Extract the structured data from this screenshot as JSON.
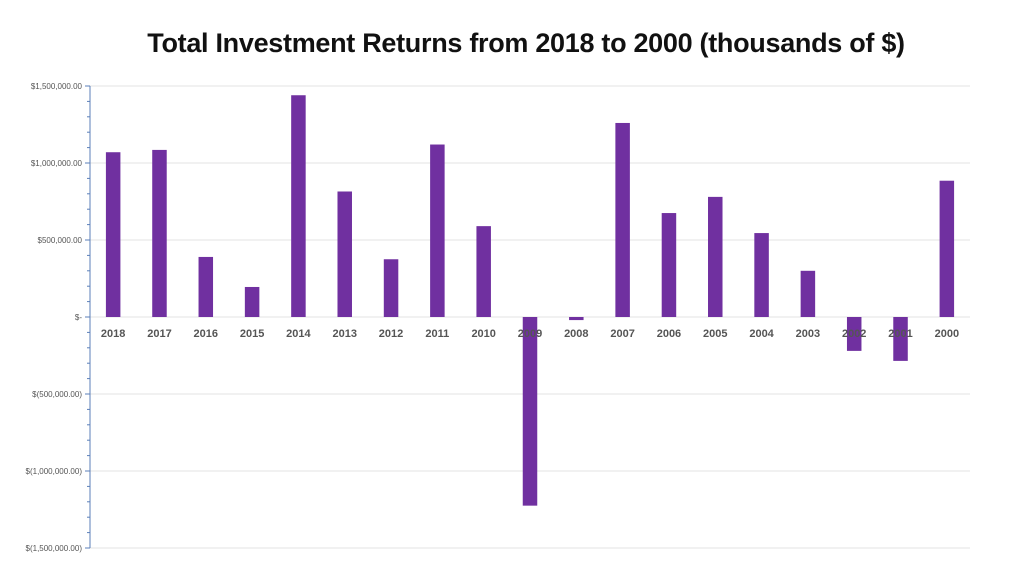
{
  "chart_data": {
    "type": "bar",
    "title": "Total Investment Returns from 2018 to 2000 (thousands of $)",
    "xlabel": "",
    "ylabel": "",
    "categories": [
      "2018",
      "2017",
      "2016",
      "2015",
      "2014",
      "2013",
      "2012",
      "2011",
      "2010",
      "2009",
      "2008",
      "2007",
      "2006",
      "2005",
      "2004",
      "2003",
      "2002",
      "2001",
      "2000"
    ],
    "values": [
      1070000,
      1085000,
      390000,
      195000,
      1440000,
      815000,
      375000,
      1120000,
      590000,
      -1225000,
      -20000,
      1260000,
      675000,
      780000,
      545000,
      300000,
      -220000,
      -285000,
      885000
    ],
    "ylim": [
      -1500000,
      1500000
    ],
    "yticks": [
      1500000,
      1000000,
      500000,
      0,
      -500000,
      -1000000,
      -1500000
    ],
    "ytick_labels": [
      "$1,500,000.00",
      "$1,000,000.00",
      "$500,000.00",
      "$-",
      "$(500,000.00)",
      "$(1,000,000.00)",
      "$(1,500,000.00)"
    ],
    "grid": true,
    "legend": "none",
    "bar_color": "#7030a0"
  }
}
